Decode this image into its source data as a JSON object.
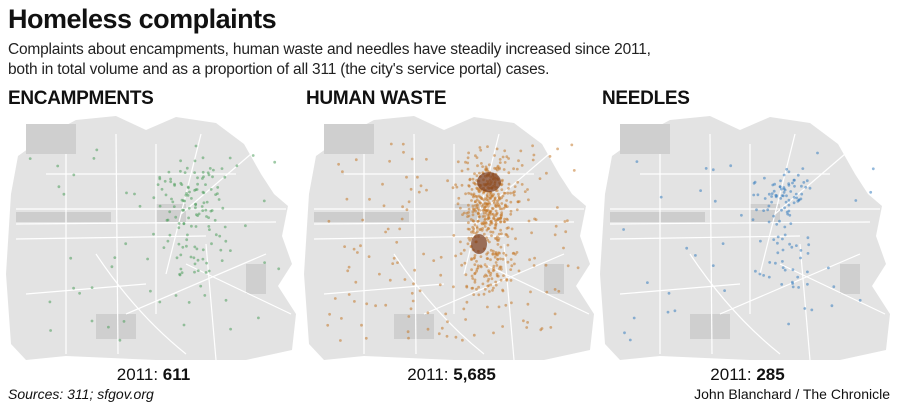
{
  "title": "Homeless complaints",
  "subtitle_lines": [
    "Complaints about encampments, human waste and needles have steadily increased since 2011,",
    "both in total volume and as a proportion of all 311 (the city's service portal) cases."
  ],
  "panels": [
    {
      "heading": "ENCAMPMENTS",
      "year": "2011:",
      "count": "611",
      "color": "#4f9e5c"
    },
    {
      "heading": "HUMAN WASTE",
      "year": "2011:",
      "count": "5,685",
      "color": "#c47a2c"
    },
    {
      "heading": "NEEDLES",
      "year": "2011:",
      "count": "285",
      "color": "#3b7fc0"
    }
  ],
  "sources": "Sources: 311; sfgov.org",
  "credit": "John Blanchard / The Chronicle"
}
